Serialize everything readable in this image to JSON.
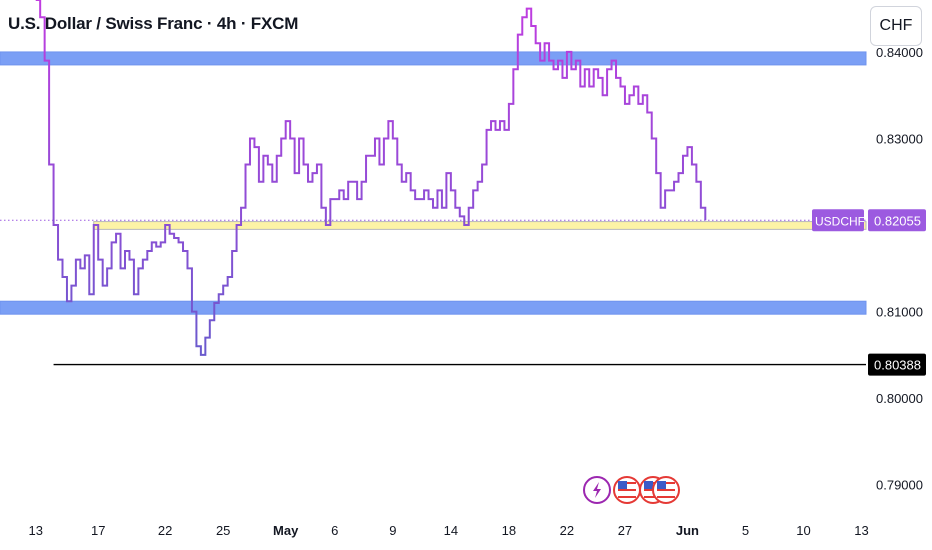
{
  "header": {
    "title": "U.S. Dollar / Swiss Franc · 4h · FXCM",
    "currency_button": "CHF"
  },
  "chart_data": {
    "type": "line",
    "symbol": "USDCHF",
    "ylim": [
      0.7865,
      0.846
    ],
    "y_ticks": [
      {
        "label": "0.84000",
        "value": 0.84
      },
      {
        "label": "0.83000",
        "value": 0.83
      },
      {
        "label": "0.81000",
        "value": 0.81
      },
      {
        "label": "0.80000",
        "value": 0.8
      },
      {
        "label": "0.79000",
        "value": 0.79
      }
    ],
    "x_ticks": [
      {
        "label": "13",
        "idx": 0,
        "bold": false
      },
      {
        "label": "17",
        "idx": 14,
        "bold": false
      },
      {
        "label": "22",
        "idx": 29,
        "bold": false
      },
      {
        "label": "25",
        "idx": 42,
        "bold": false
      },
      {
        "label": "May",
        "idx": 56,
        "bold": true
      },
      {
        "label": "6",
        "idx": 67,
        "bold": false
      },
      {
        "label": "9",
        "idx": 80,
        "bold": false
      },
      {
        "label": "14",
        "idx": 93,
        "bold": false
      },
      {
        "label": "18",
        "idx": 106,
        "bold": false
      },
      {
        "label": "22",
        "idx": 119,
        "bold": false
      },
      {
        "label": "27",
        "idx": 132,
        "bold": false
      },
      {
        "label": "Jun",
        "idx": 146,
        "bold": true
      },
      {
        "label": "5",
        "idx": 159,
        "bold": false
      },
      {
        "label": "10",
        "idx": 172,
        "bold": false
      },
      {
        "label": "13",
        "idx": 185,
        "bold": false
      }
    ],
    "x_range": [
      -8,
      186
    ],
    "series": [
      {
        "values": [
          0.846,
          0.844,
          0.839,
          0.827,
          0.82,
          0.816,
          0.814,
          0.8112,
          0.813,
          0.816,
          0.815,
          0.8165,
          0.812,
          0.82,
          0.816,
          0.813,
          0.815,
          0.818,
          0.819,
          0.815,
          0.817,
          0.816,
          0.812,
          0.815,
          0.816,
          0.817,
          0.818,
          0.8175,
          0.818,
          0.82,
          0.819,
          0.8185,
          0.818,
          0.817,
          0.815,
          0.81,
          0.806,
          0.805,
          0.807,
          0.809,
          0.811,
          0.812,
          0.813,
          0.814,
          0.817,
          0.82,
          0.822,
          0.827,
          0.83,
          0.829,
          0.825,
          0.828,
          0.827,
          0.825,
          0.828,
          0.83,
          0.832,
          0.83,
          0.826,
          0.83,
          0.827,
          0.825,
          0.826,
          0.827,
          0.822,
          0.82,
          0.823,
          0.823,
          0.824,
          0.823,
          0.825,
          0.825,
          0.823,
          0.825,
          0.828,
          0.828,
          0.83,
          0.827,
          0.83,
          0.832,
          0.83,
          0.827,
          0.825,
          0.826,
          0.824,
          0.823,
          0.823,
          0.824,
          0.823,
          0.822,
          0.824,
          0.822,
          0.826,
          0.824,
          0.822,
          0.821,
          0.82,
          0.822,
          0.824,
          0.825,
          0.827,
          0.831,
          0.832,
          0.831,
          0.832,
          0.831,
          0.834,
          0.838,
          0.842,
          0.844,
          0.845,
          0.843,
          0.841,
          0.839,
          0.841,
          0.839,
          0.838,
          0.839,
          0.837,
          0.84,
          0.838,
          0.839,
          0.836,
          0.838,
          0.836,
          0.838,
          0.837,
          0.835,
          0.838,
          0.839,
          0.837,
          0.836,
          0.834,
          0.835,
          0.836,
          0.834,
          0.835,
          0.833,
          0.83,
          0.826,
          0.822,
          0.824,
          0.824,
          0.825,
          0.826,
          0.828,
          0.829,
          0.827,
          0.825,
          0.822,
          0.82055
        ]
      }
    ],
    "last_price_label": "USDCHF",
    "last_price": "0.82055",
    "last_price_value": 0.82055,
    "low_marker_label": "0.80388",
    "low_marker_value": 0.80388,
    "zones": [
      {
        "from": 0.8385,
        "to": 0.84,
        "color": "#7b9ff5",
        "kind": "resistance"
      },
      {
        "from": 0.8097,
        "to": 0.8112,
        "color": "#7b9ff5",
        "kind": "support"
      },
      {
        "from": 0.8195,
        "to": 0.8204,
        "color": "#fdf3a6",
        "kind": "entry"
      }
    ],
    "horizontal_line": {
      "value": 0.80388,
      "color": "#000000"
    },
    "grid": false,
    "event_icons": [
      "flash-icon",
      "us-flag-icon",
      "us-flag-icon",
      "us-flag-icon"
    ],
    "colors": {
      "line_gradient_start": "#6a5acd",
      "line_gradient_end": "#c03ce0",
      "last_price_bg": "#9c5ae0",
      "low_label_bg": "#000000",
      "axis_text": "#131722"
    }
  }
}
